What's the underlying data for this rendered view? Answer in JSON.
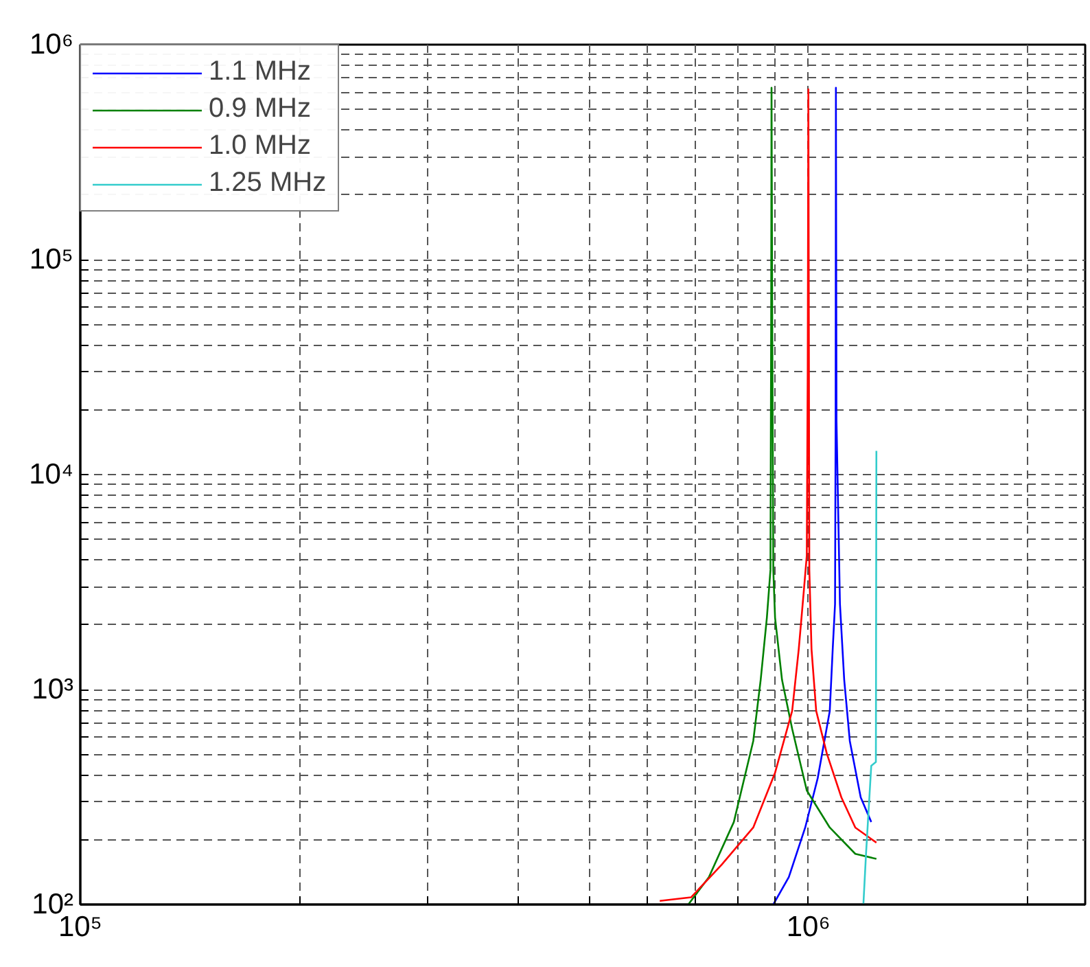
{
  "chart_data": {
    "type": "line",
    "log": "xy",
    "grid": true,
    "legend": "top left",
    "line_style": "solid",
    "marker": "none",
    "xlim": [
      100000,
      2400000
    ],
    "ylim": [
      100,
      1000000
    ],
    "xticks": [
      {
        "value": 100000,
        "label": "10⁵"
      },
      {
        "value": 200000,
        "label": null
      },
      {
        "value": 300000,
        "label": null
      },
      {
        "value": 400000,
        "label": null
      },
      {
        "value": 500000,
        "label": null
      },
      {
        "value": 600000,
        "label": null
      },
      {
        "value": 700000,
        "label": null
      },
      {
        "value": 800000,
        "label": null
      },
      {
        "value": 900000,
        "label": null
      },
      {
        "value": 1000000,
        "label": "10⁶"
      },
      {
        "value": 2000000,
        "label": null
      }
    ],
    "yticks": [
      {
        "value": 100,
        "label": "10²"
      },
      {
        "value": 200,
        "label": null
      },
      {
        "value": 300,
        "label": null
      },
      {
        "value": 400,
        "label": null
      },
      {
        "value": 500,
        "label": null
      },
      {
        "value": 600,
        "label": null
      },
      {
        "value": 700,
        "label": null
      },
      {
        "value": 800,
        "label": null
      },
      {
        "value": 900,
        "label": null
      },
      {
        "value": 1000,
        "label": "10³"
      },
      {
        "value": 2000,
        "label": null
      },
      {
        "value": 3000,
        "label": null
      },
      {
        "value": 4000,
        "label": null
      },
      {
        "value": 5000,
        "label": null
      },
      {
        "value": 6000,
        "label": null
      },
      {
        "value": 7000,
        "label": null
      },
      {
        "value": 8000,
        "label": null
      },
      {
        "value": 9000,
        "label": null
      },
      {
        "value": 10000,
        "label": "10⁴"
      },
      {
        "value": 20000,
        "label": null
      },
      {
        "value": 30000,
        "label": null
      },
      {
        "value": 40000,
        "label": null
      },
      {
        "value": 50000,
        "label": null
      },
      {
        "value": 60000,
        "label": null
      },
      {
        "value": 70000,
        "label": null
      },
      {
        "value": 80000,
        "label": null
      },
      {
        "value": 90000,
        "label": null
      },
      {
        "value": 100000,
        "label": "10⁵"
      },
      {
        "value": 200000,
        "label": null
      },
      {
        "value": 300000,
        "label": null
      },
      {
        "value": 400000,
        "label": null
      },
      {
        "value": 500000,
        "label": null
      },
      {
        "value": 600000,
        "label": null
      },
      {
        "value": 700000,
        "label": null
      },
      {
        "value": 800000,
        "label": null
      },
      {
        "value": 900000,
        "label": null
      },
      {
        "value": 1000000,
        "label": "10⁶"
      }
    ],
    "series": [
      {
        "name": "1.1 MHz",
        "color": "#0000ff",
        "x": [
          895000,
          940000,
          990000,
          1030000,
          1070000,
          1080000,
          1088000,
          1090000,
          1091000,
          1093000,
          1105000,
          1120000,
          1140000,
          1180000,
          1220000
        ],
        "values": [
          100,
          134,
          228,
          387,
          795,
          1540,
          2500,
          17800,
          630000,
          17800,
          2500,
          1110,
          576,
          315,
          242
        ]
      },
      {
        "name": "0.9 MHz",
        "color": "#008000",
        "x": [
          684000,
          730000,
          790000,
          840000,
          860000,
          877000,
          887000,
          889000,
          890000,
          892000,
          895000,
          900000,
          920000,
          950000,
          995000,
          1070000,
          1160000,
          1240000
        ],
        "values": [
          100,
          134,
          242,
          576,
          1110,
          2160,
          3600,
          51000,
          630000,
          51000,
          3600,
          2160,
          1110,
          656,
          339,
          228,
          172,
          163
        ]
      },
      {
        "name": "1.0 MHz",
        "color": "#ff0000",
        "x": [
          625000,
          690000,
          760000,
          840000,
          900000,
          950000,
          970000,
          985000,
          995000,
          998000,
          1000000,
          1003000,
          1010000,
          1025000,
          1060000,
          1110000,
          1160000,
          1240000
        ],
        "values": [
          104,
          108,
          153,
          228,
          410,
          795,
          1540,
          2800,
          4200,
          32000,
          620000,
          3600,
          1540,
          795,
          504,
          315,
          228,
          194
        ]
      },
      {
        "name": "1.25 MHz",
        "color": "#33cccc",
        "x": [
          1190000,
          1200000,
          1220000,
          1238000,
          1240000
        ],
        "values": [
          100,
          172,
          442,
          460,
          12900
        ]
      }
    ]
  }
}
